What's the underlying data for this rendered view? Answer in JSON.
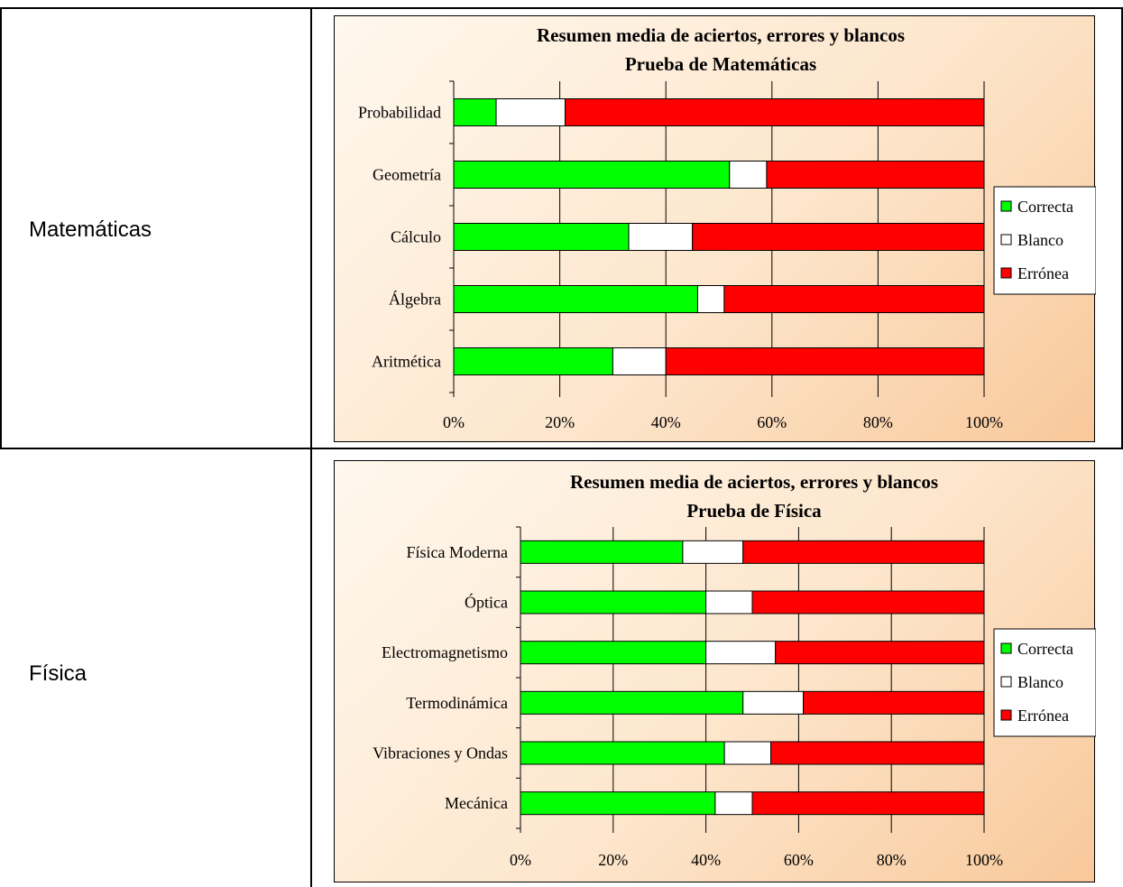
{
  "table": {
    "rows": [
      {
        "subject": "Matemáticas"
      },
      {
        "subject": "Física"
      }
    ]
  },
  "colors": {
    "correct": "#00ff00",
    "blank": "#ffffff",
    "wrong": "#ff0000"
  },
  "chart_data": [
    {
      "type": "bar",
      "orientation": "horizontal",
      "stacked": "percent",
      "title": "Resumen media de aciertos, errores y blancos",
      "subtitle": "Prueba de Matemáticas",
      "categories": [
        "Probabilidad",
        "Geometría",
        "Cálculo",
        "Álgebra",
        "Aritmética"
      ],
      "series": [
        {
          "name": "Correcta",
          "color": "#00ff00",
          "values": [
            8,
            52,
            33,
            46,
            30
          ]
        },
        {
          "name": "Blanco",
          "color": "#ffffff",
          "values": [
            13,
            7,
            12,
            5,
            10
          ]
        },
        {
          "name": "Errónea",
          "color": "#ff0000",
          "values": [
            79,
            41,
            55,
            49,
            60
          ]
        }
      ],
      "xticks": [
        "0%",
        "20%",
        "40%",
        "60%",
        "80%",
        "100%"
      ],
      "xlim": [
        0,
        100
      ],
      "grid": true,
      "legend": "right"
    },
    {
      "type": "bar",
      "orientation": "horizontal",
      "stacked": "percent",
      "title": "Resumen media de aciertos, errores y blancos",
      "subtitle": "Prueba de Física",
      "categories": [
        "Física Moderna",
        "Óptica",
        "Electromagnetismo",
        "Termodinámica",
        "Vibraciones y Ondas",
        "Mecánica"
      ],
      "series": [
        {
          "name": "Correcta",
          "color": "#00ff00",
          "values": [
            35,
            40,
            40,
            48,
            44,
            42
          ]
        },
        {
          "name": "Blanco",
          "color": "#ffffff",
          "values": [
            13,
            10,
            15,
            13,
            10,
            8
          ]
        },
        {
          "name": "Errónea",
          "color": "#ff0000",
          "values": [
            52,
            50,
            45,
            39,
            46,
            50
          ]
        }
      ],
      "xticks": [
        "0%",
        "20%",
        "40%",
        "60%",
        "80%",
        "100%"
      ],
      "xlim": [
        0,
        100
      ],
      "grid": true,
      "legend": "right"
    }
  ]
}
